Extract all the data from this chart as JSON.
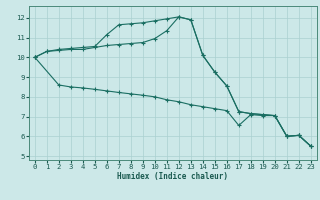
{
  "xlabel": "Humidex (Indice chaleur)",
  "xlim": [
    -0.5,
    23.5
  ],
  "ylim": [
    4.8,
    12.6
  ],
  "yticks": [
    5,
    6,
    7,
    8,
    9,
    10,
    11,
    12
  ],
  "xticks": [
    0,
    1,
    2,
    3,
    4,
    5,
    6,
    7,
    8,
    9,
    10,
    11,
    12,
    13,
    14,
    15,
    16,
    17,
    18,
    19,
    20,
    21,
    22,
    23
  ],
  "bg_color": "#cce8e8",
  "line_color": "#1a6e62",
  "grid_color": "#aad0d0",
  "lines": [
    {
      "x": [
        0,
        1,
        2,
        3,
        4,
        5,
        6,
        7,
        8,
        9,
        10,
        11,
        12,
        13,
        14,
        15,
        16,
        17,
        18,
        19,
        20,
        21,
        22,
        23
      ],
      "y": [
        10.0,
        10.3,
        10.4,
        10.45,
        10.5,
        10.55,
        11.15,
        11.65,
        11.7,
        11.75,
        11.85,
        11.95,
        12.05,
        11.9,
        10.1,
        9.25,
        8.55,
        7.25,
        7.15,
        7.1,
        7.05,
        6.0,
        6.05,
        5.5
      ]
    },
    {
      "x": [
        0,
        1,
        2,
        3,
        4,
        5,
        6,
        7,
        8,
        9,
        10,
        11,
        12,
        13,
        14,
        15,
        16,
        17,
        18,
        19,
        20,
        21,
        22,
        23
      ],
      "y": [
        10.0,
        10.3,
        10.35,
        10.4,
        10.4,
        10.5,
        10.6,
        10.65,
        10.7,
        10.75,
        10.95,
        11.35,
        12.05,
        11.9,
        10.1,
        9.25,
        8.55,
        7.25,
        7.15,
        7.1,
        7.05,
        6.0,
        6.05,
        5.5
      ]
    },
    {
      "x": [
        0,
        2,
        3,
        4,
        5,
        6,
        7,
        8,
        9,
        10,
        11,
        12,
        13,
        14,
        15,
        16,
        17,
        18,
        19,
        20,
        21,
        22,
        23
      ],
      "y": [
        10.0,
        8.6,
        8.5,
        8.45,
        8.38,
        8.3,
        8.22,
        8.15,
        8.08,
        8.0,
        7.85,
        7.75,
        7.6,
        7.5,
        7.4,
        7.3,
        6.55,
        7.1,
        7.05,
        7.05,
        6.0,
        6.05,
        5.5
      ]
    }
  ]
}
